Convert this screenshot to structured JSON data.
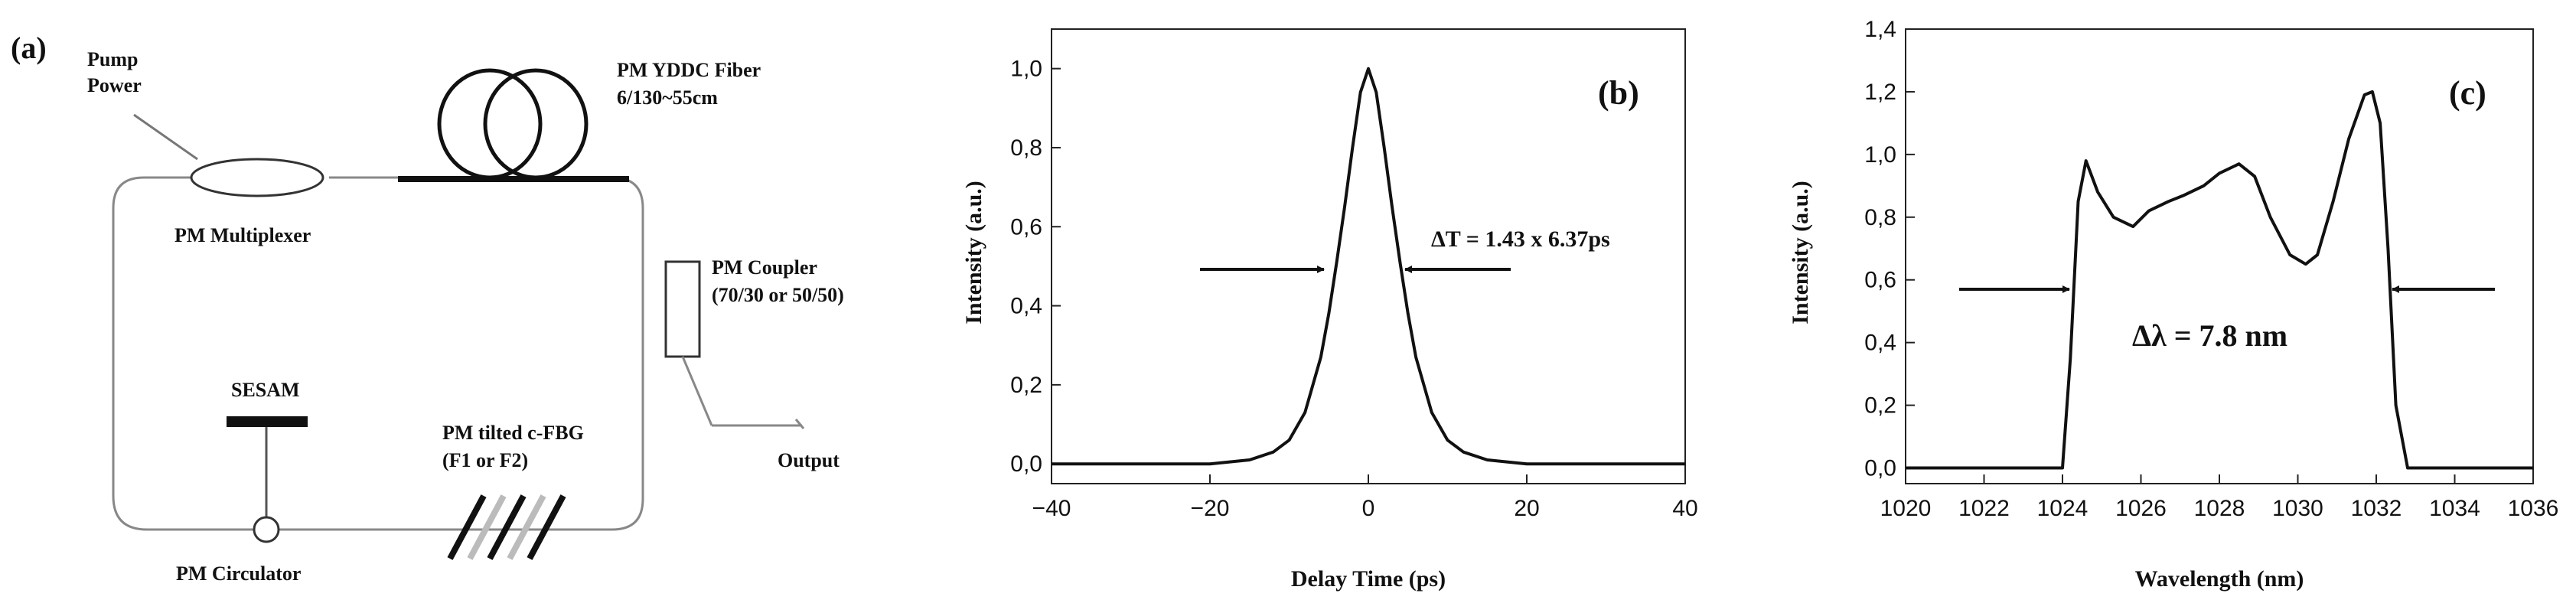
{
  "panel_a": {
    "label": "(a)",
    "pump_power_line1": "Pump",
    "pump_power_line2": "Power",
    "multiplexer": "PM Multiplexer",
    "fiber_line1": "PM YDDC Fiber",
    "fiber_line2": "6/130~55cm",
    "coupler_line1": "PM Coupler",
    "coupler_line2": "(70/30 or 50/50)",
    "output": "Output",
    "sesam": "SESAM",
    "fbg_line1": "PM tilted c-FBG",
    "fbg_line2": "(F1 or F2)",
    "circulator": "PM Circulator"
  },
  "chart_data": [
    {
      "type": "line",
      "panel_label": "(b)",
      "xlabel": "Delay Time (ps)",
      "ylabel": "Intensity (a.u.)",
      "xlim": [
        -40,
        40
      ],
      "ylim": [
        -0.05,
        1.1
      ],
      "x_ticks": [
        -40,
        -20,
        0,
        20,
        40
      ],
      "x_tick_labels": [
        "−40",
        "−20",
        "0",
        "20",
        "40"
      ],
      "y_ticks": [
        0.0,
        0.2,
        0.4,
        0.6,
        0.8,
        1.0
      ],
      "y_tick_labels": [
        "0,0",
        "0,2",
        "0,4",
        "0,6",
        "0,8",
        "1,0"
      ],
      "annotation": "ΔT = 1.43 x 6.37ps",
      "series": [
        {
          "x": [
            -40,
            -30,
            -20,
            -15,
            -12,
            -10,
            -8,
            -6,
            -5,
            -4,
            -3,
            -2,
            -1,
            0,
            1,
            2,
            3,
            4,
            5,
            6,
            8,
            10,
            12,
            15,
            20,
            30,
            40
          ],
          "y": [
            0.0,
            0.0,
            0.0,
            0.01,
            0.03,
            0.06,
            0.13,
            0.27,
            0.38,
            0.51,
            0.65,
            0.8,
            0.94,
            1.0,
            0.94,
            0.8,
            0.65,
            0.51,
            0.38,
            0.27,
            0.13,
            0.06,
            0.03,
            0.01,
            0.0,
            0.0,
            0.0
          ]
        }
      ]
    },
    {
      "type": "line",
      "panel_label": "(c)",
      "xlabel": "Wavelength (nm)",
      "ylabel": "Intensity (a.u.)",
      "xlim": [
        1020,
        1036
      ],
      "ylim": [
        -0.05,
        1.4
      ],
      "x_ticks": [
        1020,
        1022,
        1024,
        1026,
        1028,
        1030,
        1032,
        1034,
        1036
      ],
      "y_ticks": [
        0.0,
        0.2,
        0.4,
        0.6,
        0.8,
        1.0,
        1.2,
        1.4
      ],
      "y_tick_labels": [
        "0,0",
        "0,2",
        "0,4",
        "0,6",
        "0,8",
        "1,0",
        "1,2",
        "1,4"
      ],
      "annotation": "Δλ = 7.8 nm",
      "series": [
        {
          "x": [
            1020,
            1024.0,
            1024.2,
            1024.4,
            1024.6,
            1024.9,
            1025.3,
            1025.8,
            1026.2,
            1026.7,
            1027.1,
            1027.6,
            1028.0,
            1028.5,
            1028.9,
            1029.3,
            1029.8,
            1030.2,
            1030.5,
            1030.9,
            1031.3,
            1031.7,
            1031.9,
            1032.1,
            1032.3,
            1032.5,
            1032.8,
            1036
          ],
          "y": [
            0.0,
            0.0,
            0.35,
            0.85,
            0.98,
            0.88,
            0.8,
            0.77,
            0.82,
            0.85,
            0.87,
            0.9,
            0.94,
            0.97,
            0.93,
            0.8,
            0.68,
            0.65,
            0.68,
            0.85,
            1.05,
            1.19,
            1.2,
            1.1,
            0.7,
            0.2,
            0.0,
            0.0
          ]
        }
      ]
    }
  ]
}
